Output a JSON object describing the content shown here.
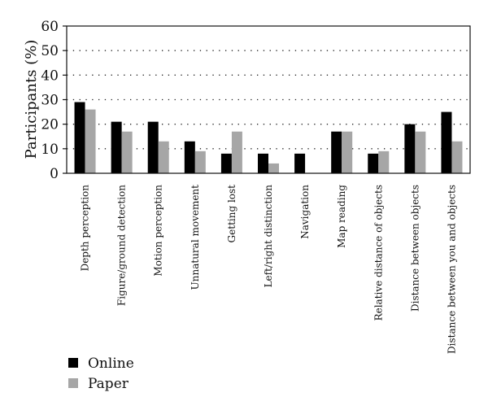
{
  "chart_data": {
    "type": "bar",
    "ylabel": "Participants (%)",
    "xlabel": "",
    "ylim": [
      0,
      60
    ],
    "yticks": [
      0,
      10,
      20,
      30,
      40,
      50,
      60
    ],
    "grid": "dotted horizontal",
    "legend_position": "bottom-left",
    "categories": [
      "Depth perception",
      "Figure/ground detection",
      "Motion perception",
      "Unnatural movement",
      "Getting lost",
      "Left/right distinction",
      "Navigation",
      "Map reading",
      "Relative distance of objects",
      "Distance between objects",
      "Distance between you and objects"
    ],
    "series": [
      {
        "name": "Online",
        "color": "#000000",
        "values": [
          29,
          21,
          21,
          13,
          8,
          8,
          8,
          17,
          8,
          20,
          25
        ]
      },
      {
        "name": "Paper",
        "color": "#a6a6a6",
        "values": [
          26,
          17,
          13,
          9,
          17,
          4,
          0,
          17,
          9,
          17,
          13
        ]
      }
    ]
  }
}
